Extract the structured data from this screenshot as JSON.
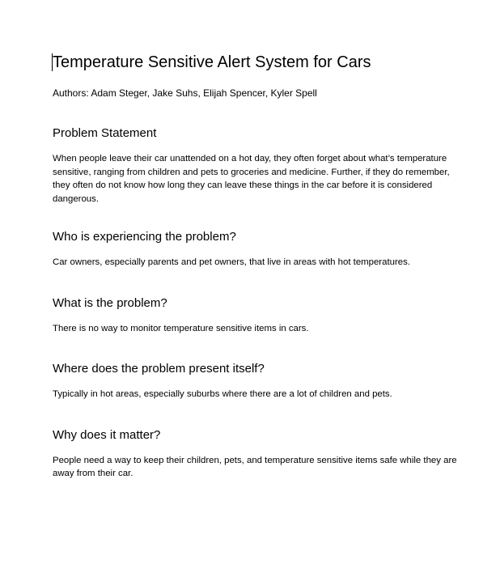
{
  "document": {
    "title": "Temperature Sensitive Alert System for Cars",
    "authors": "Authors: Adam Steger, Jake Suhs, Elijah Spencer, Kyler Spell",
    "sections": [
      {
        "heading": "Problem Statement",
        "body": "When people leave their car unattended on a hot day, they often forget about what’s temperature sensitive, ranging from children and pets to groceries and medicine.  Further, if they do remember, they often do not know how long they can leave these things in the car before it is considered dangerous."
      },
      {
        "heading": "Who is experiencing the problem?",
        "body": "Car owners, especially parents and pet owners, that live in areas with hot temperatures."
      },
      {
        "heading": "What is the problem?",
        "body": "There is no way to monitor temperature sensitive items in cars."
      },
      {
        "heading": "Where does the problem present itself?",
        "body": "Typically in hot areas, especially suburbs where there are a lot of children and pets."
      },
      {
        "heading": "Why does it matter?",
        "body": "People need a way to keep their children, pets, and temperature sensitive items safe while they are away from their car."
      }
    ]
  }
}
